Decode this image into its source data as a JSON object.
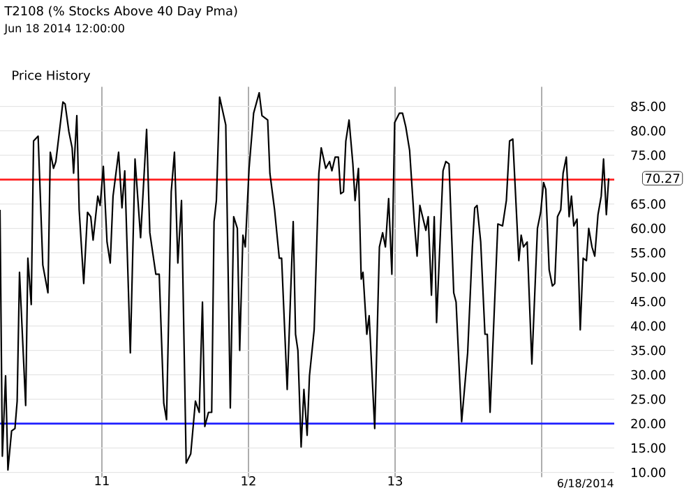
{
  "chart_data": {
    "type": "line",
    "title": "T2108 (% Stocks Above 40 Day Pma)",
    "subtitle": "Jun 18 2014 12:00:00",
    "annotations": [
      "Price History",
      "6/18/2014",
      {
        "text": "70.27",
        "x": 2014.457,
        "y": 70.27
      }
    ],
    "x": [
      2010.305,
      2010.321,
      2010.343,
      2010.359,
      2010.384,
      2010.407,
      2010.422,
      2010.438,
      2010.48,
      2010.495,
      2010.518,
      2010.534,
      2010.565,
      2010.597,
      2010.632,
      2010.648,
      2010.67,
      2010.686,
      2010.734,
      2010.749,
      2010.775,
      2010.797,
      2010.807,
      2010.829,
      2010.845,
      2010.876,
      2010.902,
      2010.924,
      2010.94,
      2010.972,
      2010.988,
      2011.01,
      2011.035,
      2011.057,
      2011.076,
      2011.114,
      2011.137,
      2011.156,
      2011.194,
      2011.226,
      2011.264,
      2011.305,
      2011.327,
      2011.368,
      2011.391,
      2011.422,
      2011.441,
      2011.473,
      2011.495,
      2011.518,
      2011.543,
      2011.575,
      2011.606,
      2011.638,
      2011.664,
      2011.686,
      2011.702,
      2011.727,
      2011.749,
      2011.765,
      2011.781,
      2011.803,
      2011.845,
      2011.876,
      2011.899,
      2011.924,
      2011.94,
      2011.962,
      2011.978,
      2012.004,
      2012.035,
      2012.073,
      2012.092,
      2012.131,
      2012.146,
      2012.178,
      2012.21,
      2012.226,
      2012.264,
      2012.305,
      2012.321,
      2012.337,
      2012.359,
      2012.378,
      2012.4,
      2012.416,
      2012.448,
      2012.48,
      2012.496,
      2012.527,
      2012.553,
      2012.569,
      2012.591,
      2012.613,
      2012.629,
      2012.648,
      2012.664,
      2012.686,
      2012.712,
      2012.727,
      2012.75,
      2012.769,
      2012.781,
      2012.807,
      2012.823,
      2012.861,
      2012.893,
      2012.915,
      2012.934,
      2012.956,
      2012.978,
      2012.997,
      2013.029,
      2013.051,
      2013.073,
      2013.099,
      2013.131,
      2013.15,
      2013.169,
      2013.21,
      2013.226,
      2013.248,
      2013.267,
      2013.283,
      2013.327,
      2013.346,
      2013.368,
      2013.4,
      2013.416,
      2013.454,
      2013.495,
      2013.527,
      2013.543,
      2013.559,
      2013.584,
      2013.613,
      2013.629,
      2013.648,
      2013.701,
      2013.733,
      2013.759,
      2013.781,
      2013.803,
      2013.844,
      2013.86,
      2013.876,
      2013.901,
      2013.933,
      2013.971,
      2013.993,
      2014.013,
      2014.028,
      2014.051,
      2014.073,
      2014.089,
      2014.108,
      2014.13,
      2014.146,
      2014.168,
      2014.187,
      2014.203,
      2014.219,
      2014.241,
      2014.263,
      2014.283,
      2014.305,
      2014.321,
      2014.343,
      2014.362,
      2014.384,
      2014.406,
      2014.422,
      2014.441,
      2014.457
    ],
    "series": [
      {
        "color": "#000000",
        "values": [
          63.8,
          13.3,
          29.8,
          10.5,
          18.5,
          19,
          24.6,
          51,
          23.7,
          53.9,
          44.4,
          77.9,
          78.9,
          52.5,
          46.8,
          75.6,
          72.3,
          73.7,
          85.9,
          85.5,
          79.8,
          76.5,
          71.3,
          83.1,
          63.8,
          48.7,
          63.3,
          62.4,
          57.6,
          66.6,
          64.7,
          72.7,
          57.2,
          52.9,
          66.6,
          75.6,
          64.2,
          71.8,
          34.5,
          74.2,
          58.1,
          80.3,
          59.1,
          50.6,
          50.6,
          24.2,
          20.8,
          67.5,
          75.6,
          52.9,
          65.7,
          11.9,
          13.8,
          24.6,
          22.3,
          44.9,
          19.4,
          22.3,
          22.3,
          61.4,
          65.7,
          86.9,
          81.2,
          23.2,
          62.4,
          60.0,
          35,
          58.6,
          56.2,
          72.3,
          83.6,
          87.8,
          83.1,
          82.2,
          71.3,
          63.8,
          53.9,
          53.9,
          27,
          61.4,
          38.3,
          35,
          15.2,
          27,
          17.6,
          29.8,
          39.2,
          71.3,
          76.5,
          72.3,
          73.7,
          71.8,
          74.6,
          74.6,
          67.1,
          67.5,
          77.9,
          82.2,
          73.2,
          65.7,
          72.3,
          49.6,
          51,
          38.3,
          42.1,
          19,
          56.2,
          59.1,
          56.2,
          66.1,
          50.6,
          81.7,
          83.6,
          83.6,
          80.8,
          76,
          61.4,
          54.3,
          64.7,
          59.6,
          62.4,
          46.3,
          62.4,
          40.7,
          71.8,
          73.7,
          73.2,
          46.8,
          44.9,
          20.4,
          34.5,
          56.2,
          64.2,
          64.7,
          57.2,
          38.3,
          38.3,
          22.3,
          60.9,
          60.5,
          65.7,
          77.9,
          78.3,
          53.4,
          58.6,
          56.2,
          57.2,
          32.2,
          60,
          63.3,
          69.4,
          68,
          51.5,
          48.2,
          48.7,
          62.4,
          63.8,
          71.3,
          74.6,
          62.4,
          66.6,
          60.5,
          61.9,
          39.2,
          53.9,
          53.4,
          60,
          56.2,
          54.3,
          62.8,
          66.6,
          74.2,
          62.8,
          70.27
        ]
      }
    ],
    "xlim": [
      2010.305,
      2014.495
    ],
    "ylim": [
      9,
      89
    ],
    "xticks": [
      {
        "value": 2011,
        "label": "11"
      },
      {
        "value": 2012,
        "label": "12"
      },
      {
        "value": 2013,
        "label": "13"
      },
      {
        "value": 2014,
        "label": null
      }
    ],
    "yticks": [
      {
        "value": 10,
        "label": "10.00"
      },
      {
        "value": 15,
        "label": "15.00"
      },
      {
        "value": 20,
        "label": "20.00"
      },
      {
        "value": 25,
        "label": "25.00"
      },
      {
        "value": 30,
        "label": "30.00"
      },
      {
        "value": 35,
        "label": "35.00"
      },
      {
        "value": 40,
        "label": "40.00"
      },
      {
        "value": 45,
        "label": "45.00"
      },
      {
        "value": 50,
        "label": "50.00"
      },
      {
        "value": 55,
        "label": "55.00"
      },
      {
        "value": 60,
        "label": "60.00"
      },
      {
        "value": 65,
        "label": "65.00"
      },
      {
        "value": 75,
        "label": "75.00"
      },
      {
        "value": 80,
        "label": "80.00"
      },
      {
        "value": 85,
        "label": "85.00"
      }
    ],
    "ref_lines": [
      {
        "axis": "y",
        "value": 70,
        "color": "#ff2020"
      },
      {
        "axis": "y",
        "value": 20,
        "color": "#2020ff"
      }
    ],
    "grid": true
  }
}
